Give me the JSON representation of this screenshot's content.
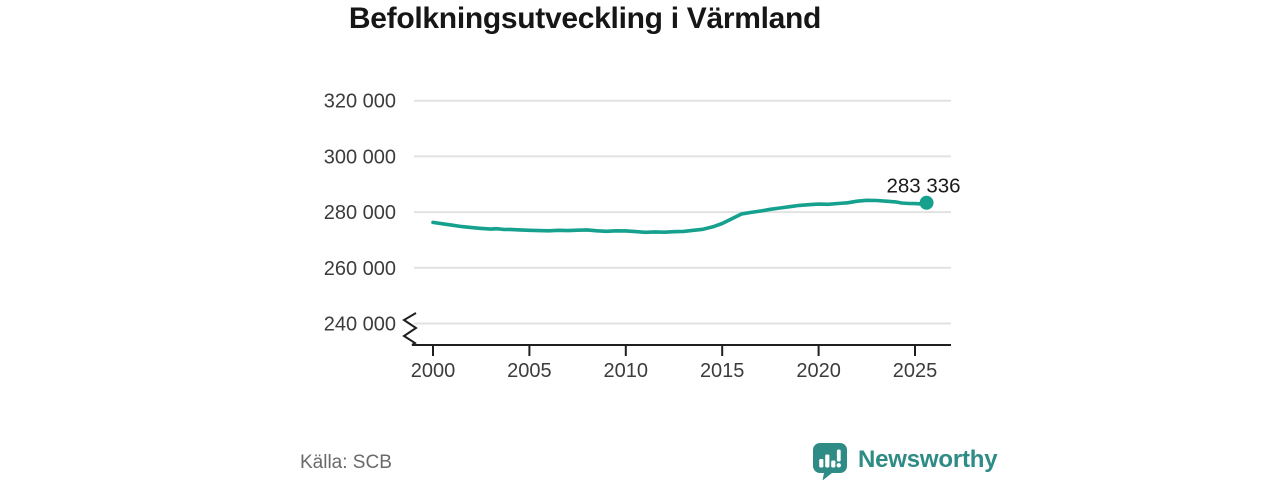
{
  "title": "Befolkningsutveckling i Värmland",
  "source": "Källa: SCB",
  "branding": {
    "name": "Newsworthy",
    "icon": "bar-chart-speech-bubble-icon",
    "color": "#2e8b85"
  },
  "colors": {
    "line": "#16a18f",
    "grid": "#e2e2e2",
    "axis": "#1f1f1f",
    "axis_text": "#3c3c3c",
    "title_text": "#161616",
    "source_text": "#6a6a6a"
  },
  "chart_data": {
    "type": "line",
    "title": "Befolkningsutveckling i Värmland",
    "xlabel": "",
    "ylabel": "",
    "x_ticks": [
      2000,
      2005,
      2010,
      2015,
      2020,
      2025
    ],
    "x_tick_labels": [
      "2000",
      "2005",
      "2010",
      "2015",
      "2020",
      "2025"
    ],
    "y_ticks": [
      240000,
      260000,
      280000,
      300000,
      320000
    ],
    "y_tick_labels": [
      "240 000",
      "260 000",
      "280 000",
      "300 000",
      "320 000"
    ],
    "ylim": [
      240000,
      320000
    ],
    "axis_break_below": 240000,
    "grid": "horizontal",
    "legend": "none",
    "last_point_value": 283336,
    "last_point_label": "283 336",
    "series": [
      {
        "name": "Befolkning i Värmland",
        "color": "#16a18f",
        "points": [
          [
            2000.0,
            276300
          ],
          [
            2000.5,
            275800
          ],
          [
            2001.0,
            275300
          ],
          [
            2001.5,
            274800
          ],
          [
            2002.0,
            274450
          ],
          [
            2002.5,
            274150
          ],
          [
            2003.0,
            273900
          ],
          [
            2003.3,
            274050
          ],
          [
            2003.7,
            273750
          ],
          [
            2004.0,
            273800
          ],
          [
            2004.5,
            273600
          ],
          [
            2005.0,
            273450
          ],
          [
            2005.5,
            273350
          ],
          [
            2006.0,
            273300
          ],
          [
            2006.5,
            273450
          ],
          [
            2007.0,
            273350
          ],
          [
            2007.5,
            273500
          ],
          [
            2008.0,
            273600
          ],
          [
            2008.5,
            273300
          ],
          [
            2009.0,
            273100
          ],
          [
            2009.5,
            273300
          ],
          [
            2010.0,
            273265
          ],
          [
            2010.5,
            273000
          ],
          [
            2011.0,
            272740
          ],
          [
            2011.5,
            272900
          ],
          [
            2012.0,
            272800
          ],
          [
            2012.5,
            272950
          ],
          [
            2013.0,
            273080
          ],
          [
            2013.5,
            273450
          ],
          [
            2014.0,
            273815
          ],
          [
            2014.5,
            274700
          ],
          [
            2015.0,
            275904
          ],
          [
            2015.5,
            277600
          ],
          [
            2016.0,
            279334
          ],
          [
            2016.5,
            279900
          ],
          [
            2017.0,
            280399
          ],
          [
            2017.5,
            281000
          ],
          [
            2018.0,
            281482
          ],
          [
            2018.5,
            281950
          ],
          [
            2019.0,
            282414
          ],
          [
            2019.5,
            282650
          ],
          [
            2020.0,
            282885
          ],
          [
            2020.5,
            282800
          ],
          [
            2021.0,
            283100
          ],
          [
            2021.5,
            283350
          ],
          [
            2022.0,
            283900
          ],
          [
            2022.5,
            284250
          ],
          [
            2023.0,
            284150
          ],
          [
            2023.5,
            283900
          ],
          [
            2024.0,
            283650
          ],
          [
            2024.3,
            283250
          ],
          [
            2024.7,
            283100
          ],
          [
            2025.0,
            283050
          ],
          [
            2025.3,
            282950
          ],
          [
            2025.6,
            283336
          ]
        ]
      }
    ]
  }
}
